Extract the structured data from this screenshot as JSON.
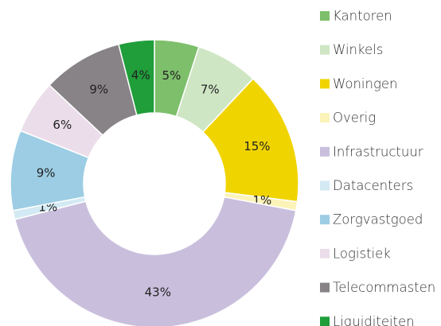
{
  "chart_data": {
    "type": "donut",
    "categories": [
      "Kantoren",
      "Winkels",
      "Woningen",
      "Overig",
      "Infrastructuur",
      "Datacenters",
      "Zorgvastgoed",
      "Logistiek",
      "Telecommasten",
      "Liquiditeiten"
    ],
    "values": [
      5,
      7,
      15,
      1,
      43,
      1,
      9,
      6,
      9,
      4
    ],
    "value_labels": [
      "5%",
      "7%",
      "15%",
      "1%",
      "43%",
      "1%",
      "9%",
      "6%",
      "9%",
      "4%"
    ],
    "colors": [
      "#7dbf6b",
      "#cfe6c4",
      "#f0d400",
      "#fbf3b8",
      "#c9bfdd",
      "#d3e9f3",
      "#9ccde4",
      "#ebdde9",
      "#878387",
      "#1f9e3a"
    ],
    "legend": "right"
  }
}
